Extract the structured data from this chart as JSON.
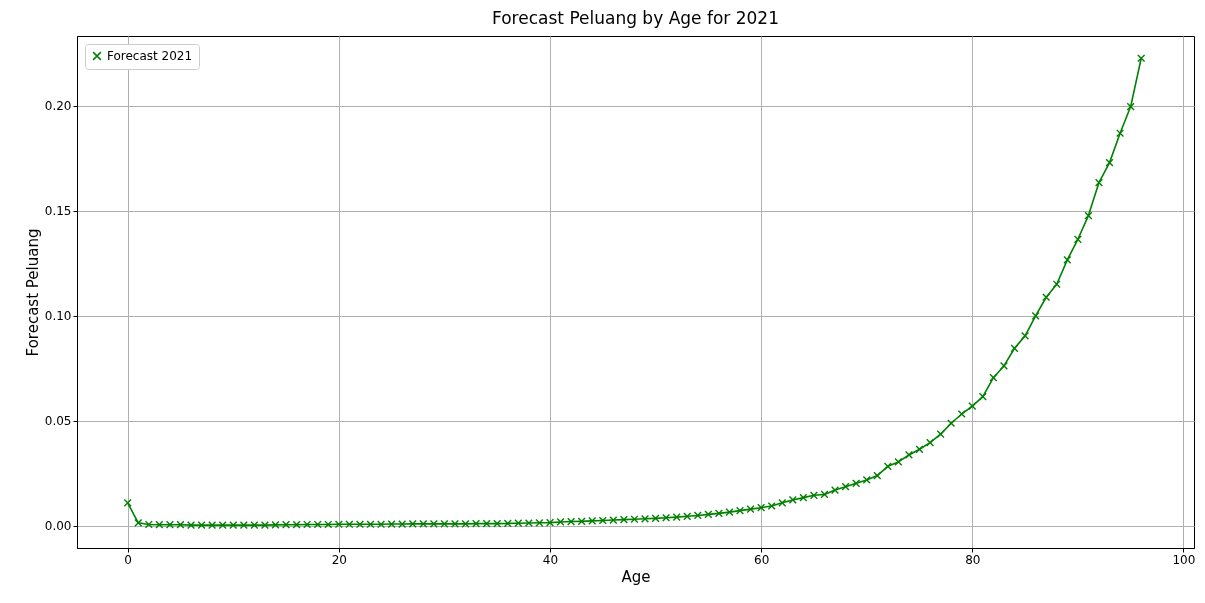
{
  "chart_data": {
    "type": "line",
    "title": "Forecast Peluang by Age for 2021",
    "xlabel": "Age",
    "ylabel": "Forecast Peluang",
    "x": [
      0,
      1,
      2,
      3,
      4,
      5,
      6,
      7,
      8,
      9,
      10,
      11,
      12,
      13,
      14,
      15,
      16,
      17,
      18,
      19,
      20,
      21,
      22,
      23,
      24,
      25,
      26,
      27,
      28,
      29,
      30,
      31,
      32,
      33,
      34,
      35,
      36,
      37,
      38,
      39,
      40,
      41,
      42,
      43,
      44,
      45,
      46,
      47,
      48,
      49,
      50,
      51,
      52,
      53,
      54,
      55,
      56,
      57,
      58,
      59,
      60,
      61,
      62,
      63,
      64,
      65,
      66,
      67,
      68,
      69,
      70,
      71,
      72,
      73,
      74,
      75,
      76,
      77,
      78,
      79,
      80,
      81,
      82,
      83,
      84,
      85,
      86,
      87,
      88,
      89,
      90,
      91,
      92,
      93,
      94,
      95,
      96
    ],
    "series": [
      {
        "name": "Forecast 2021",
        "color": "#008000",
        "values": [
          0.011,
          0.0015,
          0.0007,
          0.0006,
          0.0006,
          0.0006,
          0.0004,
          0.0004,
          0.0004,
          0.0004,
          0.0004,
          0.0004,
          0.0004,
          0.0004,
          0.0005,
          0.0006,
          0.0006,
          0.0007,
          0.0007,
          0.0007,
          0.0008,
          0.0008,
          0.0008,
          0.0008,
          0.0008,
          0.0009,
          0.0009,
          0.001,
          0.001,
          0.001,
          0.001,
          0.001,
          0.001,
          0.0011,
          0.0011,
          0.0011,
          0.0012,
          0.0013,
          0.0014,
          0.0015,
          0.0016,
          0.0019,
          0.0021,
          0.0022,
          0.0024,
          0.0026,
          0.0028,
          0.003,
          0.0032,
          0.0034,
          0.0036,
          0.0039,
          0.0042,
          0.0046,
          0.005,
          0.0055,
          0.006,
          0.0066,
          0.0073,
          0.008,
          0.0087,
          0.0095,
          0.011,
          0.0124,
          0.0135,
          0.0146,
          0.015,
          0.0171,
          0.0187,
          0.0203,
          0.0219,
          0.024,
          0.0284,
          0.0305,
          0.0338,
          0.0365,
          0.0397,
          0.0437,
          0.0489,
          0.0533,
          0.0571,
          0.0616,
          0.0706,
          0.0762,
          0.0846,
          0.0905,
          0.1,
          0.1089,
          0.1151,
          0.1267,
          0.1365,
          0.1478,
          0.1635,
          0.173,
          0.187,
          0.1997,
          0.2227
        ]
      }
    ],
    "xlim": [
      -4.8,
      101
    ],
    "ylim": [
      -0.0105,
      0.2333
    ],
    "xticks": [
      0,
      20,
      40,
      60,
      80,
      100
    ],
    "yticks": [
      {
        "value": 0,
        "label": "0.00"
      },
      {
        "value": 0.05,
        "label": "0.05"
      },
      {
        "value": 0.1,
        "label": "0.10"
      },
      {
        "value": 0.15,
        "label": "0.15"
      },
      {
        "value": 0.2,
        "label": "0.20"
      }
    ],
    "grid": true,
    "legend": "top left",
    "marker": "cross",
    "line_style": "solid"
  }
}
